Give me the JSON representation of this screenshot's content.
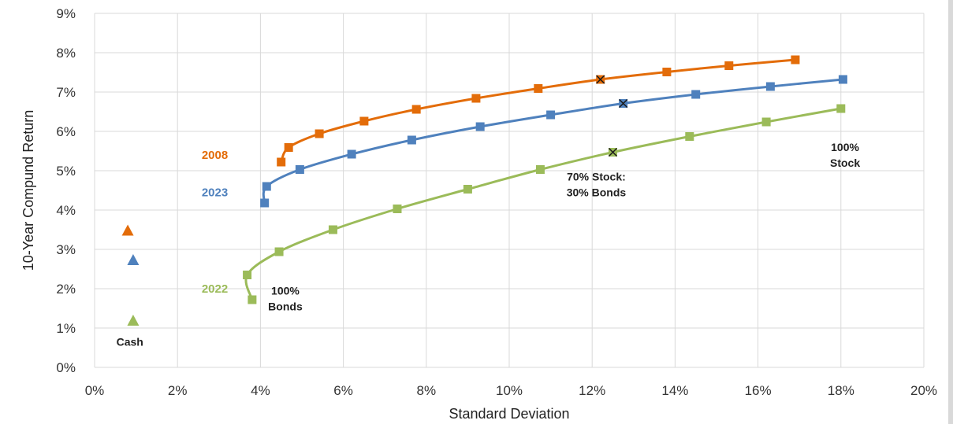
{
  "chart_data": {
    "type": "line",
    "xlabel": "Standard Deviation",
    "ylabel": "10-Year Compund Return",
    "xlim": [
      0,
      20
    ],
    "ylim": [
      0,
      9
    ],
    "x_ticks": [
      "0%",
      "2%",
      "4%",
      "6%",
      "8%",
      "10%",
      "12%",
      "14%",
      "16%",
      "18%",
      "20%"
    ],
    "y_ticks": [
      "0%",
      "1%",
      "2%",
      "3%",
      "4%",
      "5%",
      "6%",
      "7%",
      "8%",
      "9%"
    ],
    "grid": true,
    "series": [
      {
        "name": "2008",
        "color": "#E36C09",
        "label_pos": [
          2.9,
          5.3
        ],
        "points": [
          [
            4.5,
            5.22
          ],
          [
            4.68,
            5.59
          ],
          [
            5.42,
            5.94
          ],
          [
            6.5,
            6.26
          ],
          [
            7.76,
            6.56
          ],
          [
            9.2,
            6.84
          ],
          [
            10.7,
            7.09
          ],
          [
            12.2,
            7.32
          ],
          [
            13.8,
            7.51
          ],
          [
            15.3,
            7.67
          ],
          [
            16.9,
            7.82
          ]
        ],
        "marked_point": [
          12.2,
          7.32
        ],
        "cash": [
          0.8,
          3.47
        ]
      },
      {
        "name": "2023",
        "color": "#4F81BD",
        "label_pos": [
          2.9,
          4.35
        ],
        "points": [
          [
            4.1,
            4.18
          ],
          [
            4.15,
            4.6
          ],
          [
            4.95,
            5.03
          ],
          [
            6.2,
            5.42
          ],
          [
            7.65,
            5.78
          ],
          [
            9.3,
            6.12
          ],
          [
            11.0,
            6.42
          ],
          [
            12.75,
            6.71
          ],
          [
            14.5,
            6.94
          ],
          [
            16.3,
            7.14
          ],
          [
            18.05,
            7.32
          ]
        ],
        "marked_point": [
          12.75,
          6.71
        ],
        "cash": [
          0.93,
          2.72
        ]
      },
      {
        "name": "2022",
        "color": "#9BBB59",
        "label_pos": [
          2.9,
          1.9
        ],
        "points": [
          [
            3.8,
            1.72
          ],
          [
            3.68,
            2.35
          ],
          [
            4.45,
            2.94
          ],
          [
            5.75,
            3.5
          ],
          [
            7.3,
            4.03
          ],
          [
            9.0,
            4.53
          ],
          [
            10.75,
            5.03
          ],
          [
            12.5,
            5.47
          ],
          [
            14.35,
            5.87
          ],
          [
            16.2,
            6.24
          ],
          [
            18.0,
            6.58
          ]
        ],
        "marked_point": [
          12.5,
          5.47
        ],
        "cash": [
          0.93,
          1.18
        ]
      }
    ],
    "annotations": [
      {
        "lines": [
          "Cash"
        ],
        "pos": [
          0.85,
          0.55
        ]
      },
      {
        "lines": [
          "100%",
          "Bonds"
        ],
        "pos": [
          4.6,
          1.85
        ]
      },
      {
        "lines": [
          "70% Stock:",
          "30% Bonds"
        ],
        "pos": [
          12.1,
          4.75
        ]
      },
      {
        "lines": [
          "100%",
          "Stock"
        ],
        "pos": [
          18.1,
          5.5
        ]
      }
    ]
  }
}
